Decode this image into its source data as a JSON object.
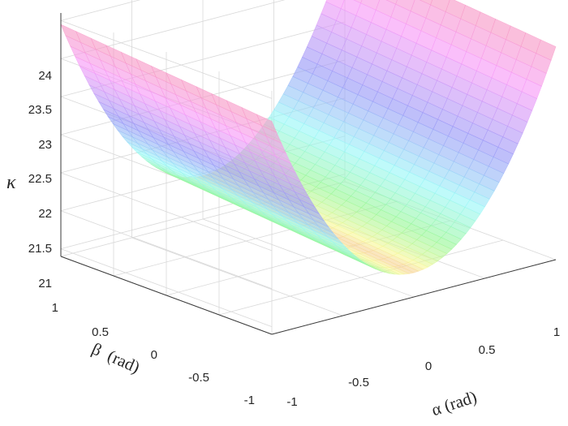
{
  "chart_data": {
    "type": "surface",
    "title": "",
    "xlabel": "α (rad)",
    "ylabel": "β  (rad)",
    "zlabel": "κ",
    "x_ticks": [
      "-1",
      "-0.5",
      "0",
      "0.5",
      "1"
    ],
    "y_ticks": [
      "-1",
      "-0.5",
      "0",
      "0.5",
      "1"
    ],
    "z_ticks": [
      "21",
      "21.5",
      "22",
      "22.5",
      "23",
      "23.5",
      "24"
    ],
    "xlim": [
      -1,
      1
    ],
    "ylim": [
      -1,
      1
    ],
    "zlim": [
      20.9,
      24.1
    ],
    "grid": true,
    "surface": {
      "description": "parabolic trough along alpha, nearly independent of beta",
      "alpha": [
        -1,
        -0.5,
        0,
        0.5,
        1
      ],
      "kappa_at_beta_1": [
        23.7,
        21.84,
        21.22,
        21.84,
        23.7
      ],
      "kappa_at_beta_minus_1": [
        23.95,
        22.09,
        21.47,
        22.09,
        23.95
      ]
    }
  }
}
